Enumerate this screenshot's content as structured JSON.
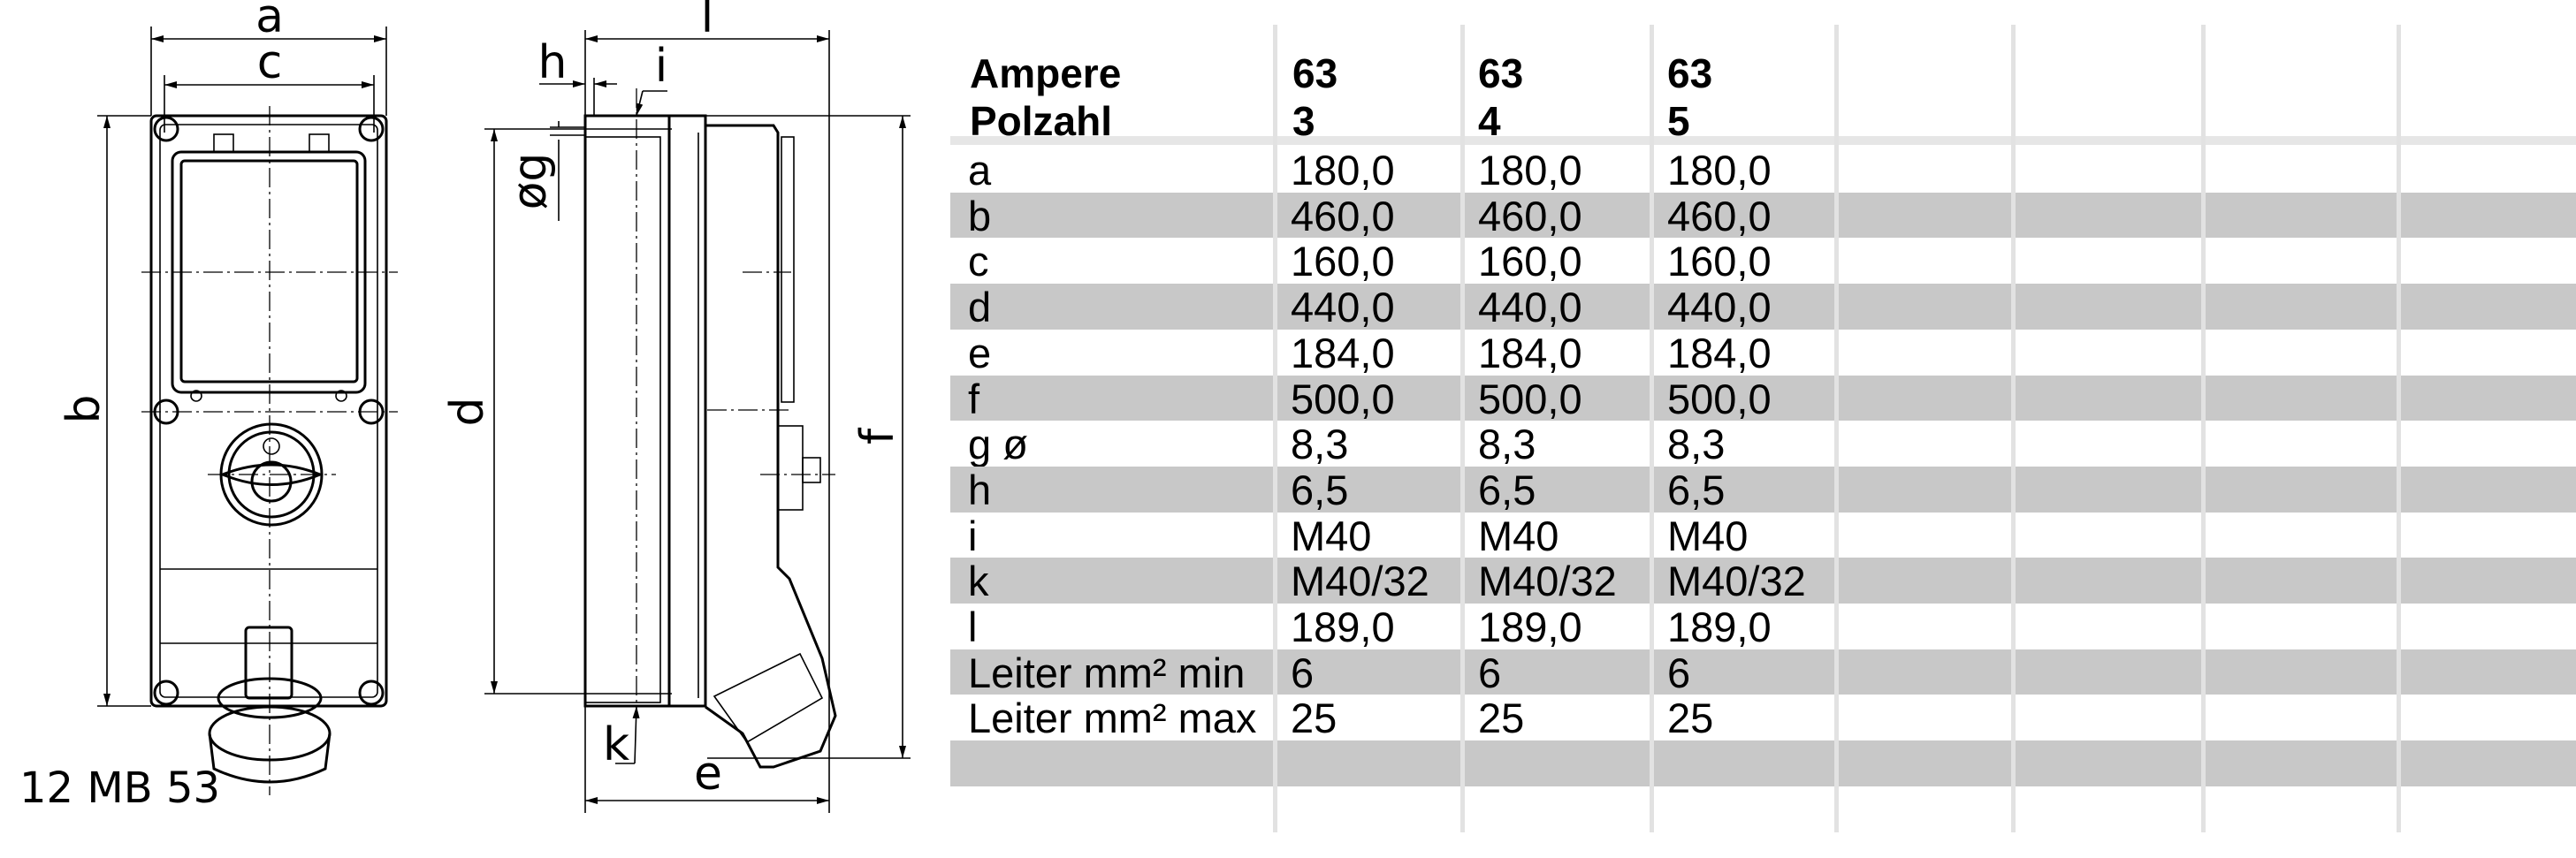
{
  "drawing": {
    "model_label": "12 MB 53",
    "dimension_labels": {
      "a": "a",
      "b": "b",
      "c": "c",
      "d": "d",
      "e": "e",
      "f": "f",
      "g": "øg",
      "h": "h",
      "i": "i",
      "k": "k",
      "l": "l"
    }
  },
  "table": {
    "header": {
      "row1": {
        "label": "Ampere",
        "values": [
          "63",
          "63",
          "63"
        ]
      },
      "row2": {
        "label": "Polzahl",
        "values": [
          "3",
          "4",
          "5"
        ]
      }
    },
    "rows": [
      {
        "label": "a",
        "values": [
          "180,0",
          "180,0",
          "180,0"
        ]
      },
      {
        "label": "b",
        "values": [
          "460,0",
          "460,0",
          "460,0"
        ]
      },
      {
        "label": "c",
        "values": [
          "160,0",
          "160,0",
          "160,0"
        ]
      },
      {
        "label": "d",
        "values": [
          "440,0",
          "440,0",
          "440,0"
        ]
      },
      {
        "label": "e",
        "values": [
          "184,0",
          "184,0",
          "184,0"
        ]
      },
      {
        "label": "f",
        "values": [
          "500,0",
          "500,0",
          "500,0"
        ]
      },
      {
        "label": "g ø",
        "values": [
          "8,3",
          "8,3",
          "8,3"
        ]
      },
      {
        "label": "h",
        "values": [
          "6,5",
          "6,5",
          "6,5"
        ]
      },
      {
        "label": "i",
        "values": [
          "M40",
          "M40",
          "M40"
        ]
      },
      {
        "label": "k",
        "values": [
          "M40/32",
          "M40/32",
          "M40/32"
        ]
      },
      {
        "label": "l",
        "values": [
          "189,0",
          "189,0",
          "189,0"
        ]
      },
      {
        "label": "Leiter mm² min",
        "values": [
          "6",
          "6",
          "6"
        ]
      },
      {
        "label": "Leiter mm² max",
        "values": [
          "25",
          "25",
          "25"
        ]
      },
      {
        "label": "",
        "values": [
          "",
          "",
          ""
        ]
      }
    ],
    "stripe_color": "#c8c8c8",
    "grid_color": "#e2e2e2"
  }
}
